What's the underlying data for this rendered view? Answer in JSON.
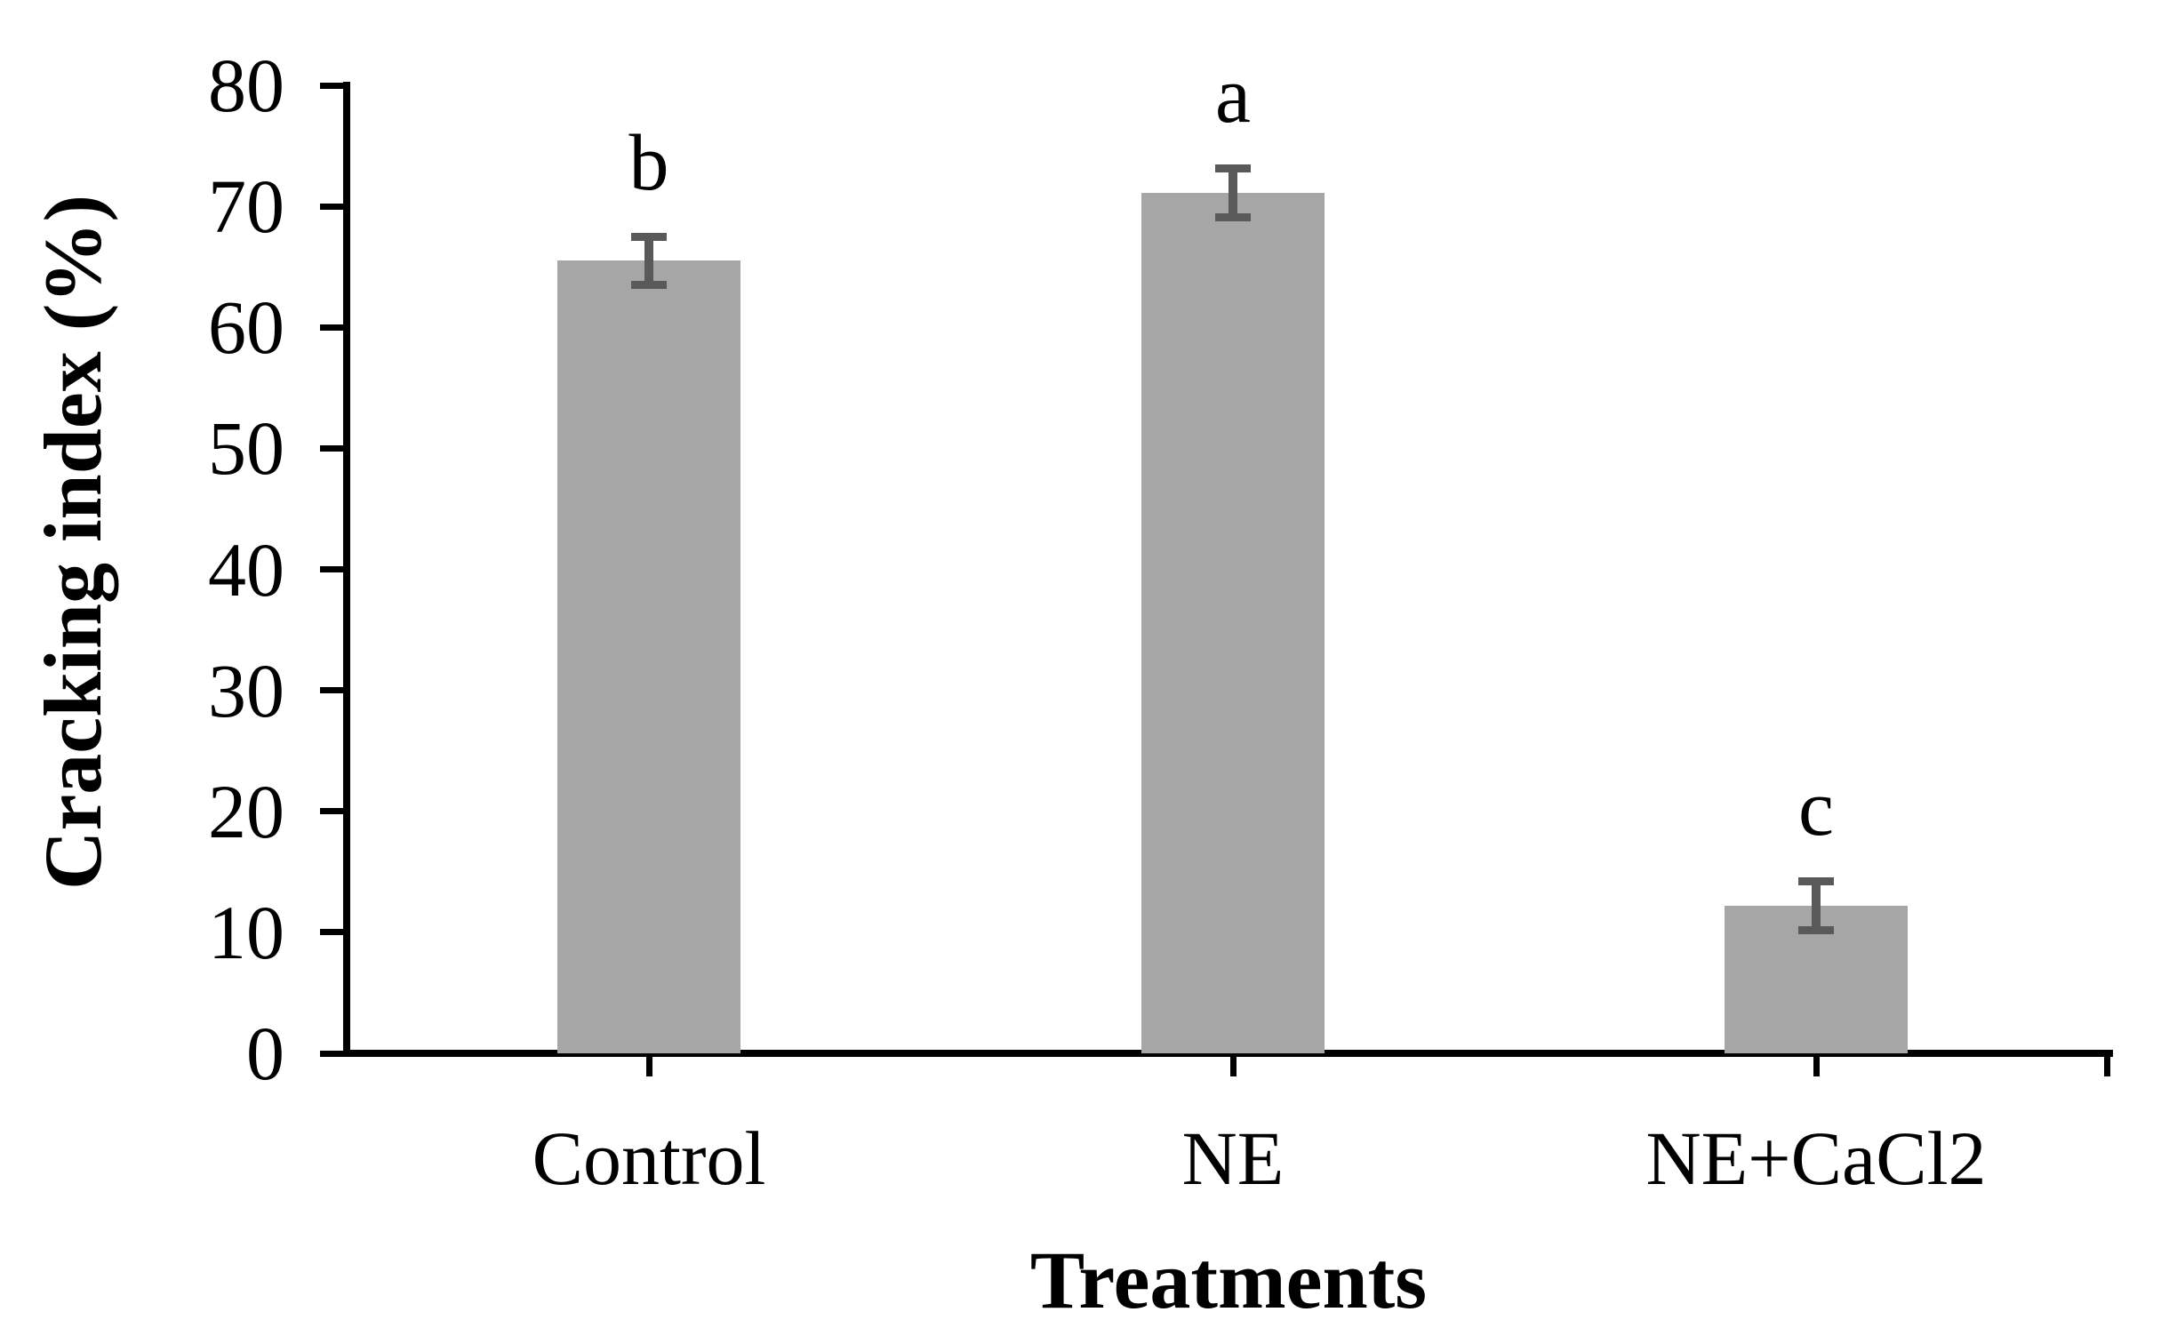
{
  "figure": {
    "background_color": "#ffffff"
  },
  "chart_data": {
    "type": "bar",
    "title": "",
    "xlabel": "Treatments",
    "ylabel": "Cracking index (%)",
    "categories": [
      "Control",
      "NE",
      "NE+CaCl2"
    ],
    "series": [
      {
        "name": "Cracking index",
        "values": [
          65.5,
          71.1,
          12.2
        ],
        "errors": [
          2.0,
          2.0,
          2.0
        ],
        "sig_letters": [
          "b",
          "a",
          "c"
        ]
      }
    ],
    "ylim": [
      0,
      80
    ],
    "ytick_step": 10,
    "ytick_labels": [
      "0",
      "10",
      "20",
      "30",
      "40",
      "50",
      "60",
      "70",
      "80"
    ],
    "grid": false,
    "legend_position": "none",
    "bar_color": "#a6a6a6",
    "error_bar_color": "#595959",
    "axis_color": "#000000",
    "text_color": "#000000"
  }
}
